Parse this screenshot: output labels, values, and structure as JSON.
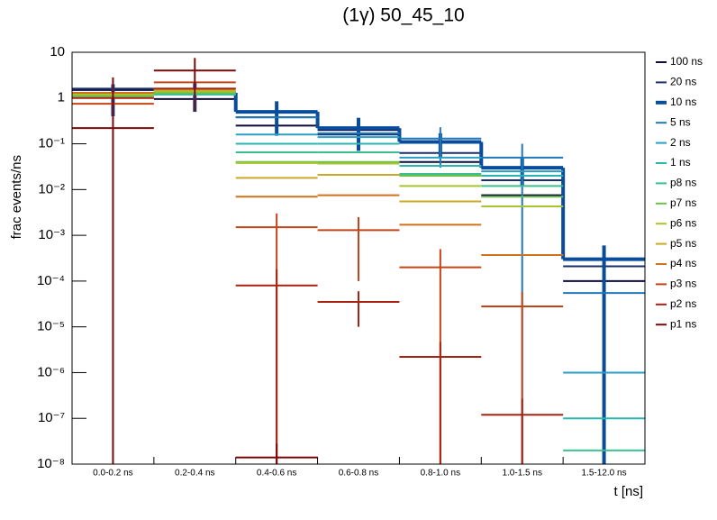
{
  "chart_data": {
    "type": "errorbar-histogram",
    "title": "(1γ) 50_45_10",
    "x_label": "t [ns]",
    "y_label": "frac events/ns",
    "categories": [
      "0.0-0.2 ns",
      "0.2-0.4 ns",
      "0.4-0.6 ns",
      "0.6-0.8 ns",
      "0.8-1.0 ns",
      "1.0-1.5 ns",
      "1.5-12.0 ns"
    ],
    "log_y": true,
    "ylim": [
      1e-08,
      10
    ],
    "yticks": [
      {
        "value": 1e-08,
        "label": "10⁻⁸"
      },
      {
        "value": 1e-07,
        "label": "10⁻⁷"
      },
      {
        "value": 1e-06,
        "label": "10⁻⁶"
      },
      {
        "value": 1e-05,
        "label": "10⁻⁵"
      },
      {
        "value": 0.0001,
        "label": "10⁻⁴"
      },
      {
        "value": 0.001,
        "label": "10⁻³"
      },
      {
        "value": 0.01,
        "label": "10⁻²"
      },
      {
        "value": 0.1,
        "label": "10⁻¹"
      },
      1,
      10
    ],
    "legend_position": "right",
    "series": [
      {
        "name": "100 ns",
        "color": "#0d0d3d",
        "width": 2,
        "values": [
          1.5,
          0.95,
          0.25,
          0.2,
          0.04,
          0.0075,
          0.0001
        ]
      },
      {
        "name": "20 ns",
        "color": "#1b2f6e",
        "width": 2,
        "values": [
          1.6,
          1.3,
          0.38,
          0.16,
          0.063,
          0.016,
          0.00021
        ]
      },
      {
        "name": "10 ns",
        "color": "#0a4c9c",
        "width": 4,
        "step": true,
        "values": [
          1.2,
          1.3,
          0.5,
          0.22,
          0.11,
          0.03,
          0.0003
        ],
        "errors": [
          0.8,
          0.8,
          0.35,
          0.15,
          0.06,
          0.018,
          0.0003
        ]
      },
      {
        "name": "5 ns",
        "color": "#1f78b8",
        "width": 2,
        "values": [
          1.3,
          1.3,
          0.38,
          0.17,
          0.13,
          0.05,
          5.5e-05
        ],
        "errors": [
          null,
          null,
          null,
          null,
          0.1,
          0.05,
          null
        ]
      },
      {
        "name": "2 ns",
        "color": "#2a9fc6",
        "width": 2,
        "values": [
          1.2,
          1.2,
          0.16,
          0.14,
          0.05,
          0.025,
          1e-06
        ]
      },
      {
        "name": "1 ns",
        "color": "#2bb5b0",
        "width": 2,
        "values": [
          1.1,
          1.2,
          0.1,
          0.1,
          0.033,
          0.02,
          1e-07
        ]
      },
      {
        "name": "p8 ns",
        "color": "#3cbf8f",
        "width": 2,
        "values": [
          1.1,
          1.2,
          0.065,
          0.065,
          0.022,
          0.012,
          2e-08
        ]
      },
      {
        "name": "p7 ns",
        "color": "#6cc04a",
        "width": 2,
        "values": [
          1.1,
          1.3,
          0.04,
          0.04,
          0.02,
          0.007,
          null
        ]
      },
      {
        "name": "p6 ns",
        "color": "#a8c52d",
        "width": 2,
        "values": [
          1.2,
          1.4,
          0.038,
          0.037,
          0.012,
          0.0043,
          null
        ]
      },
      {
        "name": "p5 ns",
        "color": "#c9a82a",
        "width": 2,
        "values": [
          1.3,
          1.5,
          0.018,
          0.021,
          0.0055,
          null,
          null
        ]
      },
      {
        "name": "p4 ns",
        "color": "#d0721a",
        "width": 2,
        "values": [
          1.3,
          1.6,
          0.007,
          0.0075,
          0.0017,
          0.00037,
          null
        ]
      },
      {
        "name": "p3 ns",
        "color": "#c44418",
        "width": 2,
        "values": [
          0.75,
          2.2,
          0.0015,
          0.0013,
          0.0002,
          2.8e-05,
          null
        ],
        "errors": [
          null,
          null,
          0.0015,
          0.0012,
          0.0003,
          3e-05,
          null
        ]
      },
      {
        "name": "p2 ns",
        "color": "#a82212",
        "width": 2,
        "values": [
          1.0,
          1.6,
          8e-05,
          3.5e-05,
          2.2e-06,
          1.2e-07,
          null
        ],
        "errors": [
          null,
          null,
          0.0001,
          2.5e-05,
          2.5e-06,
          1.5e-07,
          null
        ]
      },
      {
        "name": "p1 ns",
        "color": "#7d0a0a",
        "width": 2,
        "values": [
          0.22,
          4,
          1.4e-08,
          null,
          null,
          null,
          null
        ],
        "errors": [
          2.6,
          3.5,
          1.4e-08,
          null,
          null,
          null,
          null
        ]
      }
    ]
  }
}
